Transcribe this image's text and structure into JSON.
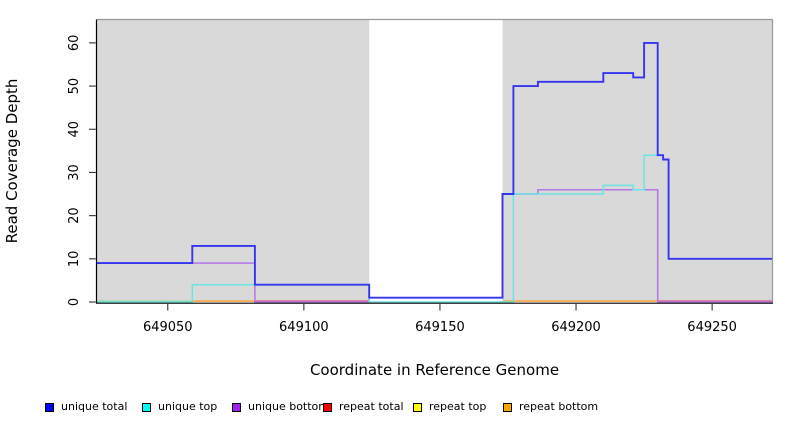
{
  "figure": {
    "background": "#ffffff",
    "panel_bg": "#d9d9d9",
    "border_color": "#999999",
    "axis_color": "#000000",
    "tick_color": "#333333"
  },
  "legend": {
    "items": [
      {
        "label": "unique total",
        "color": "#0000ff"
      },
      {
        "label": "unique top",
        "color": "#00ffff"
      },
      {
        "label": "unique bottom",
        "color": "#a020f0"
      },
      {
        "label": "repeat total",
        "color": "#ff0000"
      },
      {
        "label": "repeat top",
        "color": "#ffff00"
      },
      {
        "label": "repeat bottom",
        "color": "#ffa500"
      }
    ]
  },
  "chart_data": {
    "type": "line",
    "step": true,
    "title": "",
    "xlabel": "Coordinate in Reference Genome",
    "ylabel": "Read Coverage Depth",
    "xlim": [
      649024,
      649272
    ],
    "ylim": [
      0,
      65.3
    ],
    "x_ticks": [
      649050,
      649100,
      649150,
      649200,
      649250
    ],
    "y_ticks": [
      0,
      10,
      20,
      30,
      40,
      50,
      60
    ],
    "grid": false,
    "legend_position": "bottom",
    "mask_region": {
      "x0": 649124,
      "x1": 649173,
      "color": "#ffffff"
    },
    "series": [
      {
        "id": "unique_total",
        "name": "unique total",
        "color": "#0000ff",
        "line_color": "#3534ee",
        "width": 1.9,
        "steps": [
          [
            649024,
            9
          ],
          [
            649059,
            13
          ],
          [
            649082,
            4
          ],
          [
            649124,
            1
          ],
          [
            649173,
            25
          ],
          [
            649177,
            50
          ],
          [
            649186,
            51
          ],
          [
            649210,
            53
          ],
          [
            649221,
            52
          ],
          [
            649225,
            60
          ],
          [
            649230,
            34
          ],
          [
            649232,
            33
          ],
          [
            649234,
            10
          ]
        ],
        "x_end": 649272
      },
      {
        "id": "unique_top",
        "name": "unique top",
        "color": "#00ffff",
        "line_color": "#6ce4e4",
        "width": 1.5,
        "steps": [
          [
            649024,
            0
          ],
          [
            649059,
            4
          ],
          [
            649124,
            0
          ],
          [
            649177,
            25
          ],
          [
            649210,
            27
          ],
          [
            649221,
            26
          ],
          [
            649225,
            34
          ],
          [
            649232,
            33
          ],
          [
            649234,
            10
          ]
        ],
        "x_end": 649272
      },
      {
        "id": "unique_bottom",
        "name": "unique bottom",
        "color": "#a020f0",
        "line_color": "#b476e8",
        "width": 1.5,
        "steps": [
          [
            649024,
            9
          ],
          [
            649082,
            0
          ],
          [
            649124,
            1
          ],
          [
            649173,
            25
          ],
          [
            649186,
            26
          ],
          [
            649230,
            0
          ]
        ],
        "x_end": 649272
      },
      {
        "id": "repeat_total",
        "name": "repeat total",
        "color": "#ff0000",
        "line_color": "#e0557f",
        "width": 1.4,
        "steps": [
          [
            649024,
            0
          ]
        ],
        "x_end": 649272
      },
      {
        "id": "repeat_top",
        "name": "repeat top",
        "color": "#ffff00",
        "line_color": "#ffff00",
        "width": 1.4,
        "steps": [
          [
            649024,
            0
          ]
        ],
        "x_end": 649272
      },
      {
        "id": "repeat_bottom",
        "name": "repeat bottom",
        "color": "#ffa500",
        "line_color": "#ff9e2c",
        "width": 1.4,
        "steps": [
          [
            649024,
            0
          ]
        ],
        "x_end": 649272
      }
    ],
    "baseline_segments": [
      {
        "x0": 649024,
        "x1": 649059,
        "color": "#9ad89e"
      },
      {
        "x0": 649059,
        "x1": 649082,
        "color": "#ff9e2c"
      },
      {
        "x0": 649082,
        "x1": 649124,
        "color": "#e0557f"
      },
      {
        "x0": 649173,
        "x1": 649230,
        "color": "#ff9e2c"
      },
      {
        "x0": 649230,
        "x1": 649272,
        "color": "#e0557f"
      }
    ]
  }
}
